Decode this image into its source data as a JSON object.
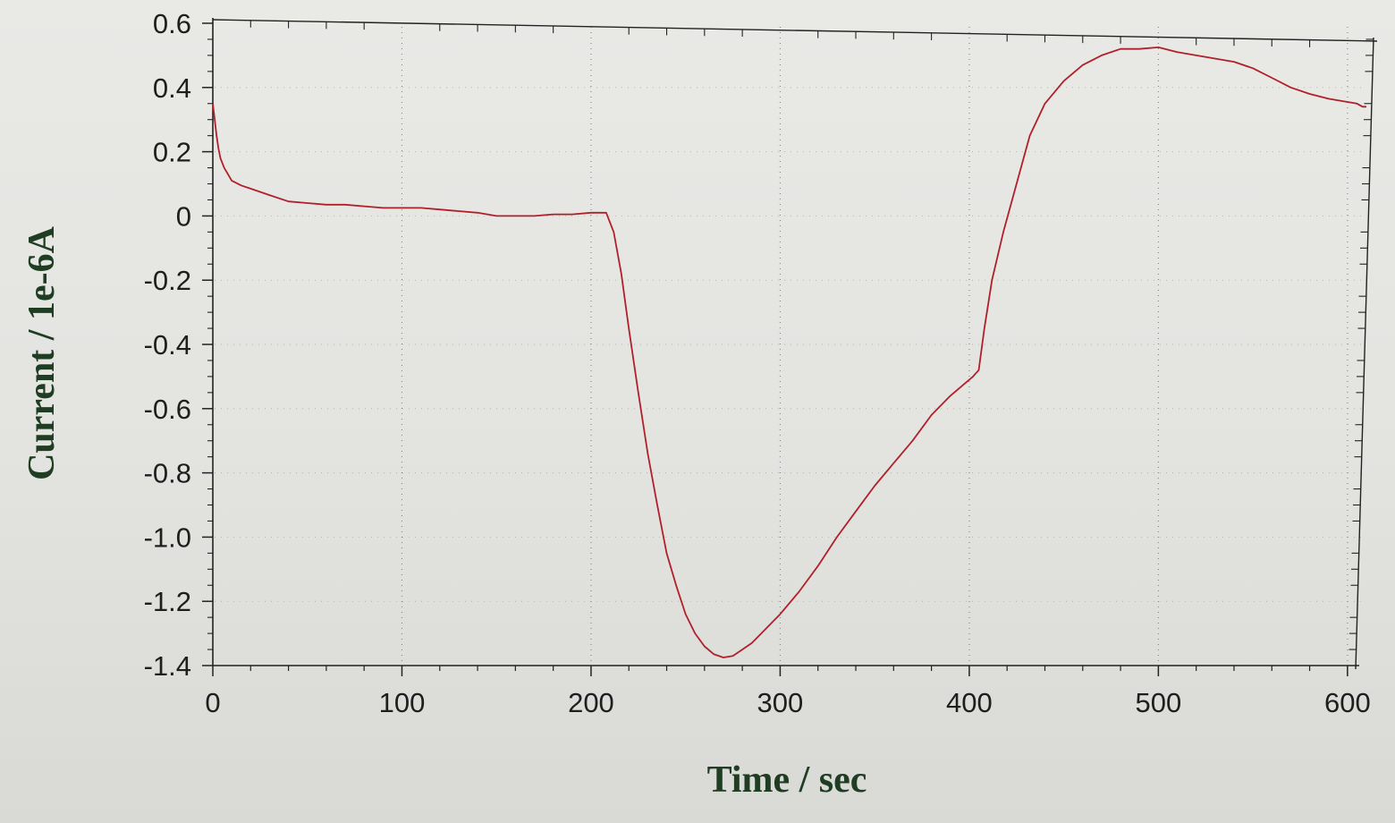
{
  "chart_data": {
    "type": "line",
    "title": "",
    "xlabel": "Time / sec",
    "ylabel": "Current / 1e-6A",
    "xlim": [
      0,
      610
    ],
    "ylim": [
      -1.4,
      0.6
    ],
    "x_ticks": [
      "0",
      "100",
      "200",
      "300",
      "400",
      "500",
      "600"
    ],
    "y_ticks": [
      "0.6",
      "0.4",
      "0.2",
      "0",
      "-0.2",
      "-0.4",
      "-0.6",
      "-0.8",
      "-1.0",
      "-1.2",
      "-1.4"
    ],
    "grid": true,
    "colors": {
      "series": "#b0202a",
      "axis": "#222222",
      "grid": "#8a8a8a",
      "title": "#1f3d22"
    },
    "series": [
      {
        "x": [
          0,
          1,
          2,
          3,
          4,
          6,
          8,
          10,
          15,
          20,
          30,
          40,
          50,
          60,
          70,
          80,
          90,
          100,
          110,
          120,
          130,
          140,
          150,
          160,
          170,
          180,
          190,
          200,
          205,
          208,
          212,
          216,
          220,
          225,
          230,
          235,
          240,
          245,
          250,
          255,
          260,
          265,
          270,
          275,
          280,
          285,
          290,
          300,
          310,
          320,
          330,
          340,
          350,
          360,
          370,
          380,
          390,
          398,
          402,
          405,
          408,
          412,
          418,
          425,
          432,
          440,
          450,
          460,
          470,
          480,
          490,
          500,
          510,
          520,
          530,
          540,
          550,
          560,
          570,
          580,
          590,
          600,
          605,
          608,
          610
        ],
        "y": [
          0.35,
          0.3,
          0.25,
          0.21,
          0.18,
          0.15,
          0.13,
          0.11,
          0.095,
          0.085,
          0.065,
          0.045,
          0.04,
          0.035,
          0.035,
          0.03,
          0.025,
          0.025,
          0.025,
          0.02,
          0.015,
          0.01,
          0.0,
          0.0,
          0.0,
          0.005,
          0.005,
          0.01,
          0.01,
          0.01,
          -0.05,
          -0.18,
          -0.35,
          -0.55,
          -0.74,
          -0.9,
          -1.05,
          -1.15,
          -1.24,
          -1.3,
          -1.34,
          -1.365,
          -1.375,
          -1.37,
          -1.35,
          -1.33,
          -1.3,
          -1.24,
          -1.17,
          -1.09,
          -1.0,
          -0.92,
          -0.84,
          -0.77,
          -0.7,
          -0.62,
          -0.56,
          -0.52,
          -0.5,
          -0.48,
          -0.35,
          -0.2,
          -0.05,
          0.1,
          0.25,
          0.35,
          0.42,
          0.47,
          0.5,
          0.52,
          0.52,
          0.525,
          0.51,
          0.5,
          0.49,
          0.48,
          0.46,
          0.43,
          0.4,
          0.38,
          0.365,
          0.355,
          0.35,
          0.34,
          0.34
        ]
      }
    ]
  }
}
